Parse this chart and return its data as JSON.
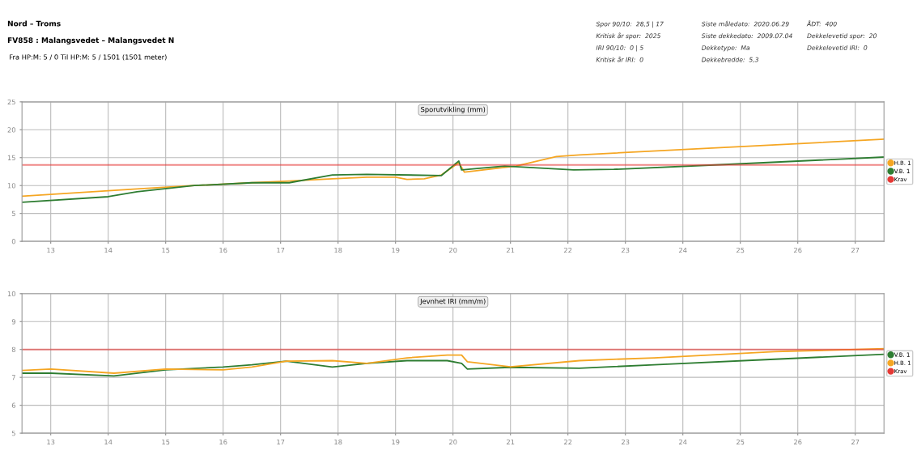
{
  "chart_data": [
    {
      "type": "line",
      "title": "Sporutvikling (mm)",
      "annotations": [
        "Nord – Troms",
        "FV858 : Malangsvedet – Malangsvedet N",
        "Fra HP:M: 5 / 0 Til HP:M: 5 / 1501 (1501 meter)",
        "Spor 90/10:  28,5 | 17",
        "Kritisk år spor:  2025",
        "IRI 90/10:  0 | 5",
        "Kritisk år IRI:  0",
        "Siste måledato:  2020.06.29",
        "Siste dekkedato:  2009.07.04",
        "Dekketype:  Ma",
        "Dekkebredde:  5,3",
        "ÅDT:  400",
        "Dekkelevetid spor:  20",
        "Dekkelevetid IRI:  0"
      ],
      "series": [
        {
          "name": "H.B. 1",
          "color": "#f5a623",
          "x": [
            2012.5,
            2014.5,
            2015.5,
            2016.5,
            2017.15,
            2017.9,
            2018.5,
            2019.0,
            2019.2,
            2019.5,
            2019.8,
            2020.1,
            2020.2,
            2021.1,
            2021.8,
            2022.2,
            2027.5
          ],
          "values": [
            8.1,
            9.4,
            10.0,
            10.5,
            10.8,
            11.2,
            11.5,
            11.5,
            11.1,
            11.2,
            11.9,
            14.1,
            12.4,
            13.5,
            15.2,
            15.5,
            18.3
          ]
        },
        {
          "name": "V.B. 1",
          "color": "#2e7d32",
          "x": [
            2012.5,
            2014.0,
            2014.5,
            2015.5,
            2016.5,
            2017.15,
            2017.9,
            2018.5,
            2019.8,
            2020.1,
            2020.15,
            2020.9,
            2021.4,
            2022.1,
            2022.8,
            2024.8,
            2027.5
          ],
          "values": [
            7.0,
            8.0,
            8.9,
            10.0,
            10.5,
            10.5,
            11.9,
            12.0,
            11.8,
            14.4,
            12.8,
            13.5,
            13.2,
            12.8,
            12.9,
            13.8,
            15.1
          ]
        }
      ],
      "ref_lines": [
        {
          "axis": "y",
          "value": 13.7,
          "label": "Krav",
          "color": "#e53935"
        }
      ],
      "xlim": [
        2012.5,
        2027.5
      ],
      "xticks": [
        {
          "value": 2013,
          "label": "13"
        },
        {
          "value": 2014,
          "label": "14"
        },
        {
          "value": 2015,
          "label": "15"
        },
        {
          "value": 2016,
          "label": "16"
        },
        {
          "value": 2017,
          "label": "17"
        },
        {
          "value": 2018,
          "label": "18"
        },
        {
          "value": 2019,
          "label": "19"
        },
        {
          "value": 2020,
          "label": "20"
        },
        {
          "value": 2021,
          "label": "21"
        },
        {
          "value": 2022,
          "label": "22"
        },
        {
          "value": 2023,
          "label": "23"
        },
        {
          "value": 2024,
          "label": "24"
        },
        {
          "value": 2025,
          "label": "25"
        },
        {
          "value": 2026,
          "label": "26"
        },
        {
          "value": 2027,
          "label": "27"
        }
      ],
      "ylim": [
        0,
        25
      ],
      "yticks": [
        0,
        5,
        10,
        15,
        20,
        25
      ],
      "grid": true,
      "legend": "right"
    },
    {
      "type": "line",
      "title": "Jevnhet IRI (mm/m)",
      "series": [
        {
          "name": "V.B. 1",
          "color": "#2e7d32",
          "x": [
            2012.5,
            2013.0,
            2014.1,
            2015.0,
            2016.0,
            2016.5,
            2017.1,
            2017.9,
            2018.5,
            2019.2,
            2019.9,
            2020.15,
            2020.25,
            2021.0,
            2022.2,
            2023.5,
            2025.6,
            2027.5
          ],
          "values": [
            7.15,
            7.15,
            7.05,
            7.27,
            7.37,
            7.45,
            7.58,
            7.37,
            7.5,
            7.6,
            7.6,
            7.5,
            7.3,
            7.36,
            7.33,
            7.45,
            7.65,
            7.83
          ]
        },
        {
          "name": "H.B. 1",
          "color": "#f5a623",
          "x": [
            2012.5,
            2013.0,
            2014.1,
            2015.0,
            2016.0,
            2016.5,
            2017.1,
            2017.9,
            2018.5,
            2019.2,
            2019.9,
            2020.15,
            2020.25,
            2021.0,
            2022.2,
            2023.5,
            2025.6,
            2027.5
          ],
          "values": [
            7.25,
            7.3,
            7.15,
            7.3,
            7.27,
            7.37,
            7.58,
            7.6,
            7.5,
            7.7,
            7.8,
            7.8,
            7.56,
            7.38,
            7.6,
            7.7,
            7.92,
            8.03
          ]
        }
      ],
      "ref_lines": [
        {
          "axis": "y",
          "value": 8,
          "label": "Krav",
          "color": "#e53935"
        }
      ],
      "xlim": [
        2012.5,
        2027.5
      ],
      "xticks": [
        {
          "value": 2013,
          "label": "13"
        },
        {
          "value": 2014,
          "label": "14"
        },
        {
          "value": 2015,
          "label": "15"
        },
        {
          "value": 2016,
          "label": "16"
        },
        {
          "value": 2017,
          "label": "17"
        },
        {
          "value": 2018,
          "label": "18"
        },
        {
          "value": 2019,
          "label": "19"
        },
        {
          "value": 2020,
          "label": "20"
        },
        {
          "value": 2021,
          "label": "21"
        },
        {
          "value": 2022,
          "label": "22"
        },
        {
          "value": 2023,
          "label": "23"
        },
        {
          "value": 2024,
          "label": "24"
        },
        {
          "value": 2025,
          "label": "25"
        },
        {
          "value": 2026,
          "label": "26"
        },
        {
          "value": 2027,
          "label": "27"
        }
      ],
      "ylim": [
        5,
        10
      ],
      "yticks": [
        5,
        6,
        7,
        8,
        9,
        10
      ],
      "grid": true,
      "legend": "right"
    }
  ]
}
